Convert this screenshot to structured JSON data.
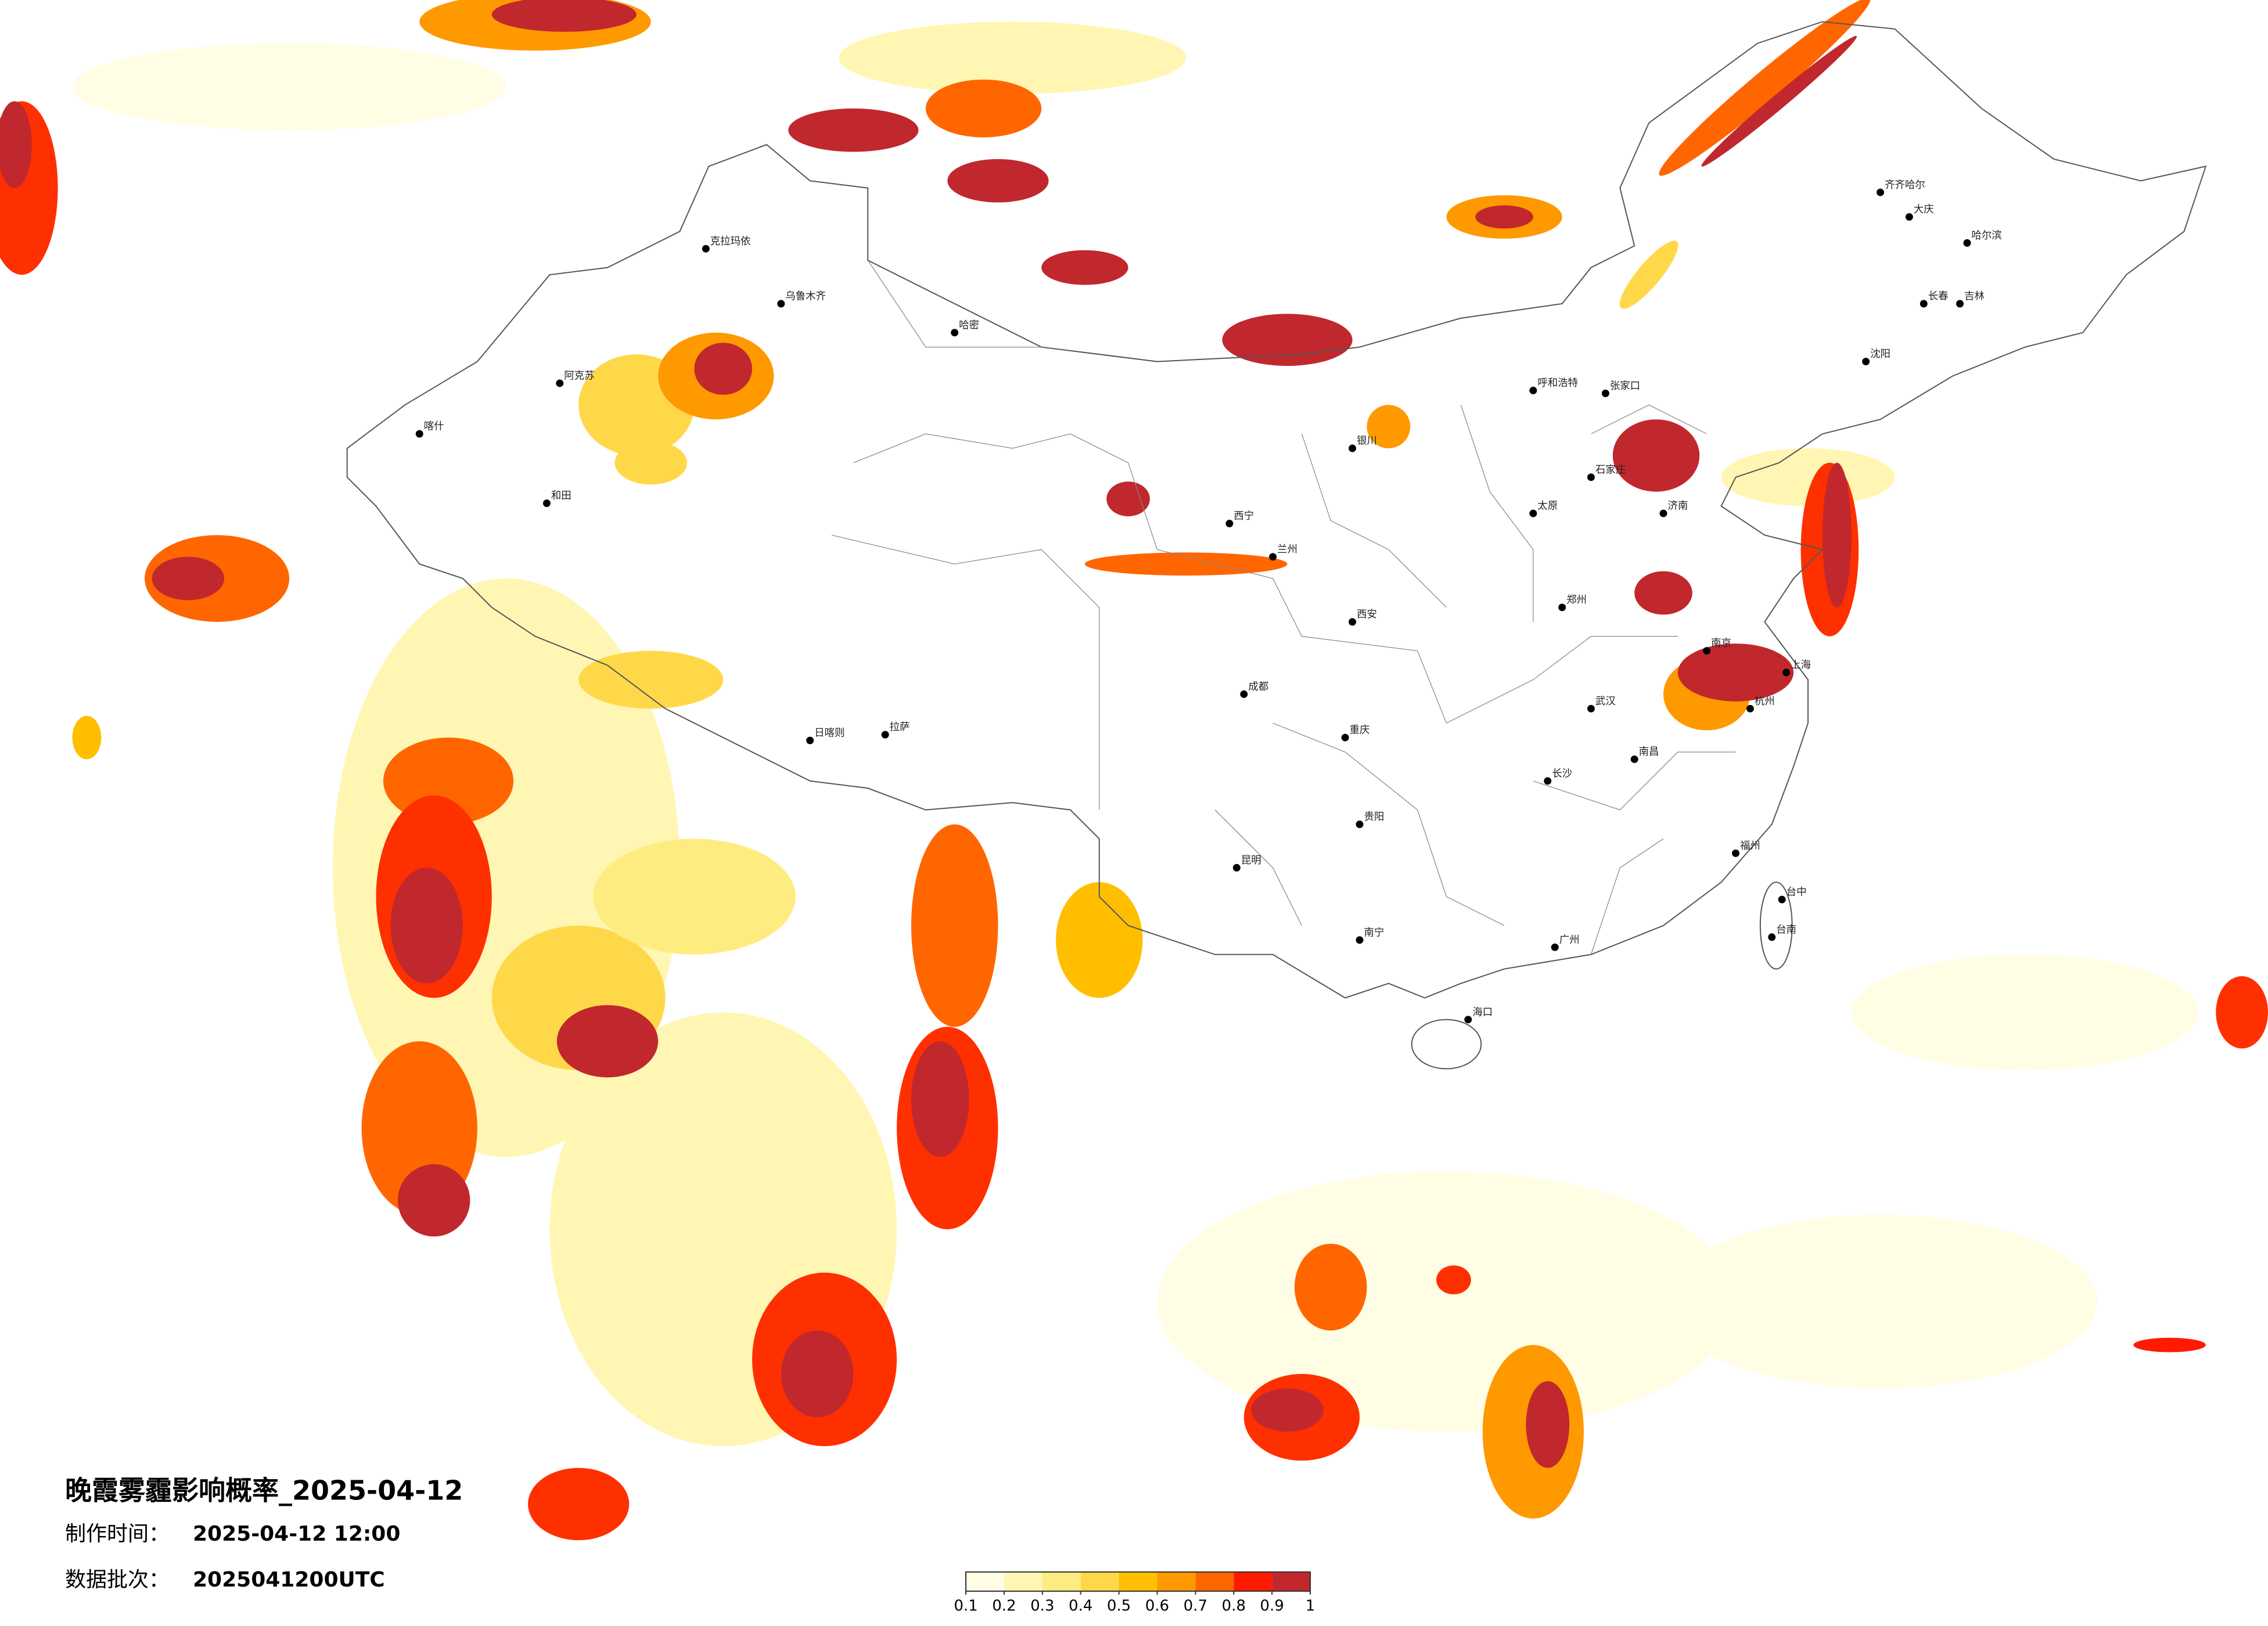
{
  "title": "晚霞雾霾影响概率_2025-04-12",
  "info": [
    {
      "label": "制作时间：",
      "value": "2025-04-12 12:00"
    },
    {
      "label": "数据批次：",
      "value": "2025041200UTC"
    }
  ],
  "legend": {
    "ticks": [
      0.1,
      0.2,
      0.3,
      0.4,
      0.5,
      0.6,
      0.7,
      0.8,
      0.9,
      1
    ],
    "colors": [
      "#fffde3",
      "#fff6b3",
      "#ffec80",
      "#ffd84a",
      "#ffbf00",
      "#ff9900",
      "#ff6600",
      "#ff1a00",
      "#c0282d"
    ]
  },
  "cities": [
    "乌鲁木齐",
    "克拉玛依",
    "哈密",
    "阿克苏",
    "和田",
    "喀什",
    "拉萨",
    "日喀则",
    "西宁",
    "兰州",
    "银川",
    "呼和浩特",
    "张家口",
    "石家庄",
    "太原",
    "西安",
    "郑州",
    "济南",
    "武汉",
    "长沙",
    "南昌",
    "杭州",
    "南京",
    "上海",
    "福州",
    "广州",
    "南宁",
    "昆明",
    "贵阳",
    "成都",
    "重庆",
    "海口",
    "台中",
    "台南",
    "哈尔滨",
    "长春",
    "沈阳",
    "齐齐哈尔",
    "吉林",
    "大庆"
  ]
}
